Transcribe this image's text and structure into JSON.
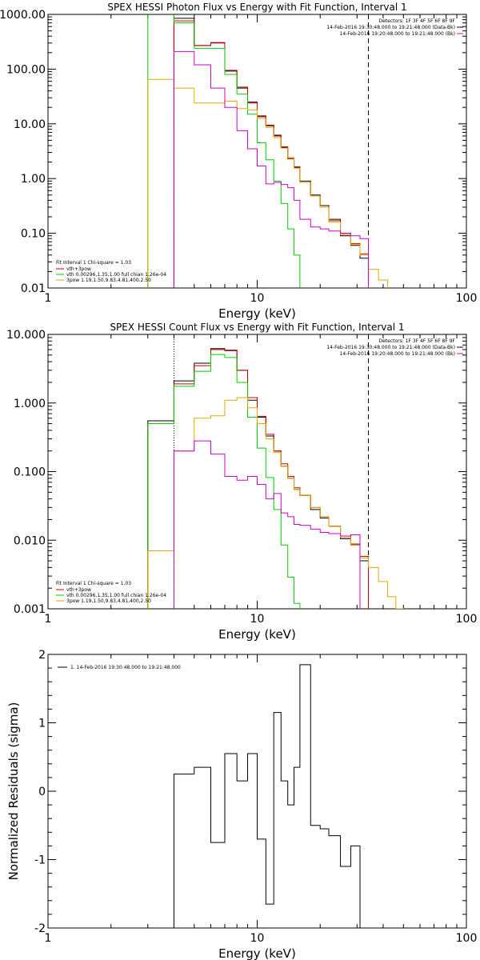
{
  "chart_data": [
    {
      "type": "line",
      "title": "SPEX HESSI Photon Flux vs Energy with Fit Function, Interval 1",
      "xlabel": "Energy (keV)",
      "ylabel": "",
      "xscale": "log",
      "yscale": "log",
      "xlim": [
        1,
        100
      ],
      "ylim": [
        0.01,
        1000
      ],
      "xticks": [
        1,
        10,
        100
      ],
      "xtick_labels": [
        "1",
        "10",
        "100"
      ],
      "yticks": [
        0.01,
        0.1,
        1,
        10,
        100,
        1000
      ],
      "ytick_labels": [
        "0.01",
        "0.10",
        "1.00",
        "10.00",
        "100.00",
        "1000.00"
      ],
      "vlines": [
        {
          "x": 4.0,
          "style": "dotted"
        },
        {
          "x": 34.0,
          "style": "dashed"
        }
      ],
      "annotations_top_right": [
        "Detectors: 1F 3F 4F 5F 6F 8F 9F",
        "14-Feb-2016 19:30:48.000 to 19:21:48.000 (Data-Bk)",
        "14-Feb-2016 19:20:48.000 to 19:21:48.000 (Bk)"
      ],
      "legend_bottom_left": {
        "header": "Fit Interval 1   Chi-square = 1.03",
        "items": [
          {
            "label": "vth+3pow",
            "color": "#cc0000"
          },
          {
            "label": "vth 0.00296,1.35,1.00  full chian 1.26e-04",
            "color": "#00cc00"
          },
          {
            "label": "3pow 1.19,1.50,9.83,4.81,400,2.50",
            "color": "#ddaa00"
          }
        ]
      },
      "edges": [
        3.0,
        4.0,
        5.0,
        6.0,
        7.0,
        8.0,
        9.0,
        10.0,
        11.0,
        12.0,
        13.0,
        14.0,
        15.0,
        16.0,
        18.0,
        20.0,
        22.0,
        25.0,
        28.0,
        31.0,
        34.0,
        38.0,
        42.0,
        46.0
      ],
      "series": [
        {
          "color": "#000000",
          "values": [
            null,
            850,
            270,
            305,
            92,
            45,
            25,
            13.5,
            9.2,
            6.2,
            3.7,
            2.4,
            1.6,
            0.9,
            0.5,
            0.32,
            0.18,
            0.09,
            0.06,
            0.035,
            null,
            null,
            null
          ]
        },
        {
          "color": "#cc0000",
          "values": [
            null,
            760,
            270,
            300,
            95,
            47,
            24,
            14,
            9.5,
            6.0,
            3.8,
            2.3,
            1.65,
            0.85,
            0.48,
            0.3,
            0.17,
            0.1,
            0.065,
            0.042,
            null,
            null,
            null
          ]
        },
        {
          "color": "#00cc00",
          "values": [
            6000,
            700,
            240,
            240,
            80,
            35,
            15,
            4.5,
            2.2,
            0.9,
            0.35,
            0.12,
            0.04,
            0.0085,
            null,
            null,
            null,
            null,
            null,
            null,
            null,
            null,
            null
          ]
        },
        {
          "color": "#ddaa00",
          "values": [
            65,
            45,
            24,
            24,
            26,
            19,
            18,
            12.5,
            8.5,
            5.6,
            3.6,
            2.4,
            1.55,
            0.85,
            0.48,
            0.3,
            0.16,
            0.095,
            0.062,
            0.04,
            0.022,
            0.014,
            0.0085
          ]
        },
        {
          "color": "#cc00cc",
          "values": [
            null,
            210,
            120,
            45,
            20,
            7.5,
            3.5,
            1.7,
            0.8,
            0.85,
            0.78,
            0.68,
            0.4,
            0.18,
            0.13,
            0.12,
            0.11,
            0.1,
            0.09,
            0.08,
            null,
            null,
            null
          ]
        }
      ]
    },
    {
      "type": "line",
      "title": "SPEX HESSI Count Flux vs Energy with Fit Function, Interval 1",
      "xlabel": "Energy (keV)",
      "ylabel": "",
      "xscale": "log",
      "yscale": "log",
      "xlim": [
        1,
        100
      ],
      "ylim": [
        0.001,
        10
      ],
      "xticks": [
        1,
        10,
        100
      ],
      "xtick_labels": [
        "1",
        "10",
        "100"
      ],
      "yticks": [
        0.001,
        0.01,
        0.1,
        1,
        10
      ],
      "ytick_labels": [
        "0.001",
        "0.010",
        "0.100",
        "1.000",
        "10.000"
      ],
      "vlines": [
        {
          "x": 4.0,
          "style": "dotted"
        },
        {
          "x": 34.0,
          "style": "dashed"
        }
      ],
      "annotations_top_right": [
        "Detectors: 1F 3F 4F 5F 6F 8F 9F",
        "14-Feb-2016 19:30:48.000 to 19:21:48.000 (Data-Bk)",
        "14-Feb-2016 19:20:48.000 to 19:21:48.000 (Bk)"
      ],
      "legend_bottom_left": {
        "header": "Fit Interval 1   Chi-square = 1.03",
        "items": [
          {
            "label": "vth+3pow",
            "color": "#cc0000"
          },
          {
            "label": "vth 0.00296,1.35,1.00  full chian 1.26e-04",
            "color": "#00cc00"
          },
          {
            "label": "3pow 1.19,1.50,9.83,4.81,400,2.50",
            "color": "#ddaa00"
          }
        ]
      },
      "edges": [
        3.0,
        4.0,
        5.0,
        6.0,
        7.0,
        8.0,
        9.0,
        10.0,
        11.0,
        12.0,
        13.0,
        14.0,
        15.0,
        16.0,
        18.0,
        20.0,
        22.0,
        25.0,
        28.0,
        31.0,
        34.0,
        38.0,
        42.0,
        46.0,
        50.0
      ],
      "series": [
        {
          "color": "#000000",
          "values": [
            0.55,
            2.1,
            3.8,
            6.2,
            5.8,
            3.0,
            1.1,
            0.62,
            0.33,
            0.2,
            0.12,
            0.08,
            0.055,
            0.045,
            0.028,
            0.021,
            0.016,
            0.0105,
            0.0085,
            0.005,
            null,
            null,
            null,
            null
          ]
        },
        {
          "color": "#cc0000",
          "values": [
            0.5,
            1.9,
            3.5,
            6.0,
            5.9,
            3.0,
            1.2,
            0.64,
            0.35,
            0.2,
            0.13,
            0.085,
            0.058,
            0.045,
            0.03,
            0.022,
            0.016,
            0.0115,
            0.0088,
            0.0058,
            null,
            null,
            null,
            null
          ]
        },
        {
          "color": "#00cc00",
          "values": [
            0.5,
            1.75,
            2.9,
            5.1,
            4.6,
            2.0,
            0.62,
            0.22,
            0.082,
            0.028,
            0.0085,
            0.0029,
            0.0012,
            null,
            null,
            null,
            null,
            null,
            null,
            null,
            null,
            null,
            null,
            null
          ]
        },
        {
          "color": "#ddaa00",
          "values": [
            0.007,
            0.2,
            0.6,
            0.65,
            1.1,
            1.2,
            0.85,
            0.5,
            0.3,
            0.19,
            0.12,
            0.08,
            0.055,
            0.045,
            0.03,
            0.022,
            0.016,
            0.011,
            0.0085,
            0.0055,
            0.004,
            0.0025,
            0.0015,
            0.001
          ]
        },
        {
          "color": "#cc00cc",
          "values": [
            null,
            0.2,
            0.28,
            0.18,
            0.085,
            0.075,
            0.085,
            0.065,
            0.04,
            0.048,
            0.025,
            0.022,
            0.017,
            0.0165,
            0.0145,
            0.013,
            0.0125,
            0.0115,
            0.012,
            null,
            null,
            null,
            null,
            null
          ]
        }
      ]
    },
    {
      "type": "line",
      "title": "",
      "xlabel": "Energy (keV)",
      "ylabel": "Normalized Residuals (sigma)",
      "xscale": "log",
      "yscale": "linear",
      "xlim": [
        1,
        100
      ],
      "ylim": [
        -2,
        2
      ],
      "xticks": [
        1,
        10,
        100
      ],
      "xtick_labels": [
        "1",
        "10",
        "100"
      ],
      "yticks": [
        -2,
        -1,
        0,
        1,
        2
      ],
      "ytick_labels": [
        "-2",
        "-1",
        "0",
        "1",
        "2"
      ],
      "legend_top_left": {
        "label": "1. 14-Feb-2016 19:30:48.000 to 19:21:48.000",
        "color": "#000000"
      },
      "edges": [
        4.0,
        5.0,
        6.0,
        7.0,
        8.0,
        9.0,
        10.0,
        11.0,
        12.0,
        13.0,
        14.0,
        15.0,
        16.0,
        18.0,
        20.0,
        22.0,
        25.0,
        28.0,
        31.0,
        34.0
      ],
      "series": [
        {
          "color": "#000000",
          "values": [
            0.25,
            0.35,
            -0.75,
            0.55,
            0.15,
            0.55,
            -0.7,
            -1.65,
            1.15,
            0.15,
            -0.2,
            0.35,
            1.85,
            -0.5,
            -0.55,
            -0.65,
            -1.1,
            -0.8,
            -2.0
          ],
          "start_from": -2.0,
          "end_to": -2.0
        }
      ]
    }
  ]
}
